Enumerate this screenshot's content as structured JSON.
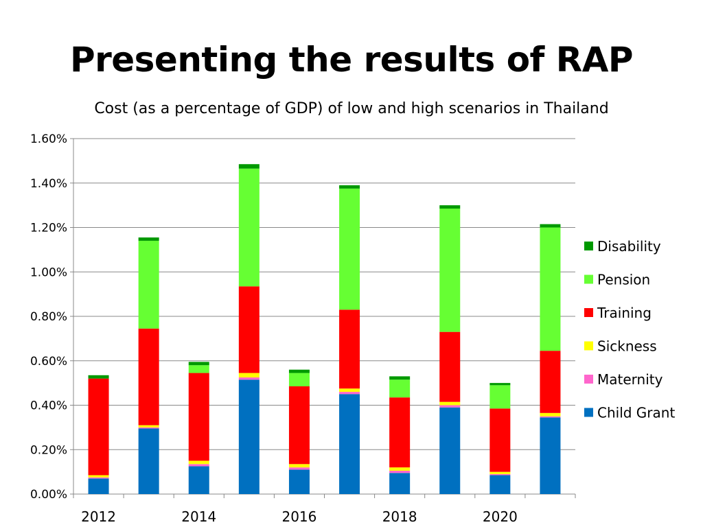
{
  "slide": {
    "title": "Presenting the results of RAP"
  },
  "chart_data": {
    "type": "bar",
    "stacked": true,
    "title": "Cost (as a percentage of GDP) of low and high scenarios in Thailand",
    "xlabel": "",
    "ylabel": "",
    "ylim": [
      0,
      1.6
    ],
    "y_ticks": [
      "0.00%",
      "0.20%",
      "0.40%",
      "0.60%",
      "0.80%",
      "1.00%",
      "1.20%",
      "1.40%",
      "1.60%"
    ],
    "x_tick_labels": [
      "2012",
      "2014",
      "2016",
      "2018",
      "2020"
    ],
    "categories": [
      "2012",
      "2013",
      "2014",
      "2015",
      "2016",
      "2017",
      "2018",
      "2019",
      "2020",
      "2021"
    ],
    "grid": true,
    "legend_position": "right",
    "series": [
      {
        "name": "Child Grant",
        "color": "#0070C0",
        "values": [
          0.07,
          0.295,
          0.125,
          0.515,
          0.11,
          0.45,
          0.095,
          0.39,
          0.085,
          0.345
        ]
      },
      {
        "name": "Maternity",
        "color": "#FF66CC",
        "values": [
          0.005,
          0.005,
          0.01,
          0.01,
          0.01,
          0.01,
          0.01,
          0.01,
          0.005,
          0.005
        ]
      },
      {
        "name": "Sickness",
        "color": "#FFFF00",
        "values": [
          0.01,
          0.01,
          0.015,
          0.02,
          0.015,
          0.015,
          0.015,
          0.015,
          0.01,
          0.015
        ]
      },
      {
        "name": "Training",
        "color": "#FF0000",
        "values": [
          0.435,
          0.435,
          0.395,
          0.39,
          0.35,
          0.355,
          0.315,
          0.315,
          0.285,
          0.28
        ]
      },
      {
        "name": "Pension",
        "color": "#66FF33",
        "values": [
          0.0,
          0.395,
          0.035,
          0.53,
          0.06,
          0.545,
          0.08,
          0.555,
          0.105,
          0.555
        ]
      },
      {
        "name": "Disability",
        "color": "#009900",
        "values": [
          0.015,
          0.015,
          0.015,
          0.02,
          0.015,
          0.015,
          0.015,
          0.015,
          0.01,
          0.015
        ]
      }
    ],
    "legend_order": [
      "Disability",
      "Pension",
      "Training",
      "Sickness",
      "Maternity",
      "Child Grant"
    ]
  }
}
